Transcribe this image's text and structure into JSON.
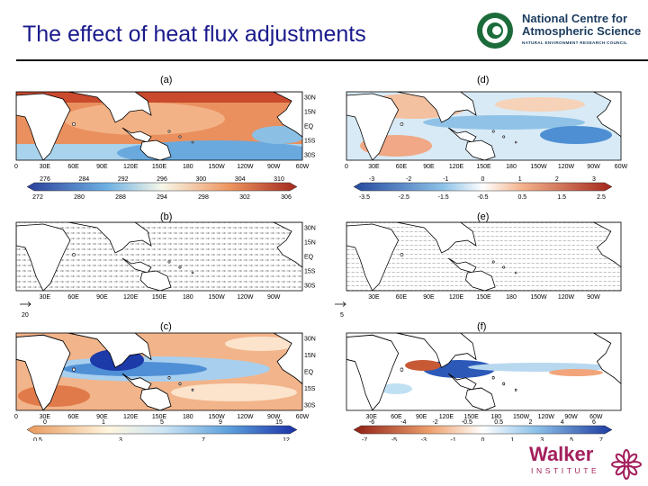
{
  "slide": {
    "title": "The effect of heat flux adjustments"
  },
  "logos": {
    "ncas_line1": "National Centre for",
    "ncas_line2": "Atmospheric Science",
    "ncas_sub": "NATURAL ENVIRONMENT RESEARCH COUNCIL",
    "walker_word": "Walker",
    "walker_inst": "INSTITUTE"
  },
  "axes": {
    "lon_ticks": [
      "0",
      "30E",
      "60E",
      "90E",
      "120E",
      "150E",
      "180",
      "150W",
      "120W",
      "90W",
      "60W"
    ],
    "lon_ticks_b": [
      "30E",
      "60E",
      "90E",
      "120E",
      "150E",
      "180",
      "150W",
      "120W",
      "90W"
    ],
    "lon_ticks_f": [
      "30E",
      "60E",
      "90E",
      "120E",
      "150E",
      "180",
      "150W",
      "120W",
      "90W",
      "60W"
    ],
    "lat_ticks": [
      "30N",
      "15N",
      "EQ",
      "15S",
      "30S"
    ]
  },
  "colors": {
    "ocean_warm": "#e8855a",
    "ocean_cool": "#8fc1e0",
    "land": "#ffffff",
    "blue_strong": "#1f4fb4",
    "red_strong": "#b5381f"
  },
  "panels": [
    {
      "label": "(a)",
      "top_labels": [
        "276",
        "284",
        "292",
        "296",
        "300",
        "304",
        "310"
      ],
      "bottom_labels": [
        "272",
        "280",
        "288",
        "294",
        "298",
        "302",
        "306"
      ]
    },
    {
      "label": "(d)",
      "top_labels": [
        "-3",
        "-2",
        "-1",
        "0",
        "1",
        "2",
        "3"
      ],
      "bottom_labels": [
        "-3.5",
        "-2.5",
        "-1.5",
        "-0.5",
        "0.5",
        "1.5",
        "2.5"
      ]
    },
    {
      "label": "(b)",
      "vector_ref": "20"
    },
    {
      "label": "(e)",
      "vector_ref": "5"
    },
    {
      "label": "(c)",
      "top_labels": [
        "0",
        "1",
        "5",
        "9",
        "15"
      ],
      "bottom_labels": [
        "0.5",
        "3",
        "7",
        "12"
      ]
    },
    {
      "label": "(f)",
      "top_labels": [
        "-6",
        "-4",
        "-2",
        "-0.5",
        "0.5",
        "2",
        "4",
        "6"
      ],
      "bottom_labels": [
        "-7",
        "-5",
        "-3",
        "-1",
        "0",
        "1",
        "3",
        "5",
        "7"
      ]
    }
  ]
}
